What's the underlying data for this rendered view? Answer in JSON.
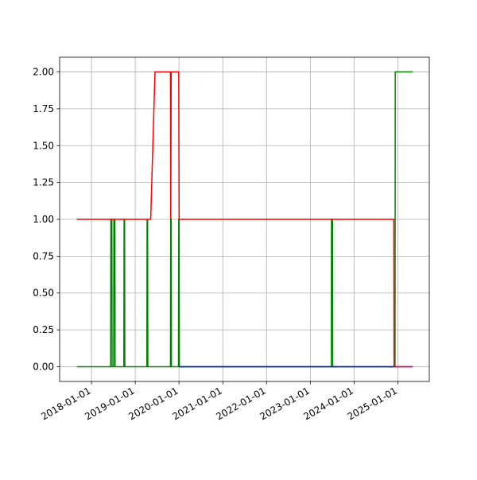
{
  "chart_data": {
    "type": "line",
    "xlim": [
      "2017-04-10",
      "2025-09-20"
    ],
    "xticks": [
      "2018-01-01",
      "2019-01-01",
      "2020-01-01",
      "2021-01-01",
      "2022-01-01",
      "2023-01-01",
      "2024-01-01",
      "2025-01-01"
    ],
    "ylim": [
      -0.1,
      2.1
    ],
    "yticks": [
      {
        "value": 0,
        "label": "0.00"
      },
      {
        "value": 0.25,
        "label": "0.25"
      },
      {
        "value": 0.5,
        "label": "0.50"
      },
      {
        "value": 0.75,
        "label": "0.75"
      },
      {
        "value": 1,
        "label": "1.00"
      },
      {
        "value": 1.25,
        "label": "1.25"
      },
      {
        "value": 1.5,
        "label": "1.50"
      },
      {
        "value": 1.75,
        "label": "1.75"
      },
      {
        "value": 2,
        "label": "2.00"
      }
    ],
    "grid": true,
    "series": [
      {
        "color": "#008000",
        "x": [
          "2017-09-01",
          "2018-06-10",
          "2018-06-12",
          "2018-06-20",
          "2018-06-22",
          "2018-07-05",
          "2018-07-07",
          "2018-07-15",
          "2018-07-17",
          "2018-09-28",
          "2018-09-30",
          "2018-10-04",
          "2018-10-06",
          "2019-04-08",
          "2019-04-10",
          "2019-04-14",
          "2019-04-16",
          "2019-10-22",
          "2019-10-24",
          "2019-10-28",
          "2019-10-30",
          "2019-12-28",
          "2019-12-30",
          "2020-01-02",
          "2020-01-04",
          "2023-06-25",
          "2023-06-27",
          "2023-07-05",
          "2023-07-07",
          "2024-12-08",
          "2024-12-10",
          "2025-05-05"
        ],
        "values": [
          0,
          0,
          1,
          1,
          0,
          0,
          1,
          1,
          0,
          0,
          1,
          1,
          0,
          0,
          1,
          1,
          0,
          0,
          1,
          1,
          0,
          0,
          1,
          1,
          0,
          0,
          1,
          1,
          0,
          0,
          2,
          2
        ]
      },
      {
        "color": "#0000ff",
        "x": [
          "2020-01-04",
          "2025-05-05"
        ],
        "values": [
          0,
          0
        ]
      },
      {
        "color": "#ff0000",
        "x": [
          "2017-09-01",
          "2019-05-10",
          "2019-06-15",
          "2019-10-22",
          "2019-10-24",
          "2019-10-28",
          "2019-12-30",
          "2020-01-02",
          "2024-11-28",
          "2024-11-30",
          "2025-05-05"
        ],
        "values": [
          1,
          1,
          2,
          2,
          1,
          2,
          2,
          1,
          1,
          0,
          0
        ]
      }
    ]
  }
}
